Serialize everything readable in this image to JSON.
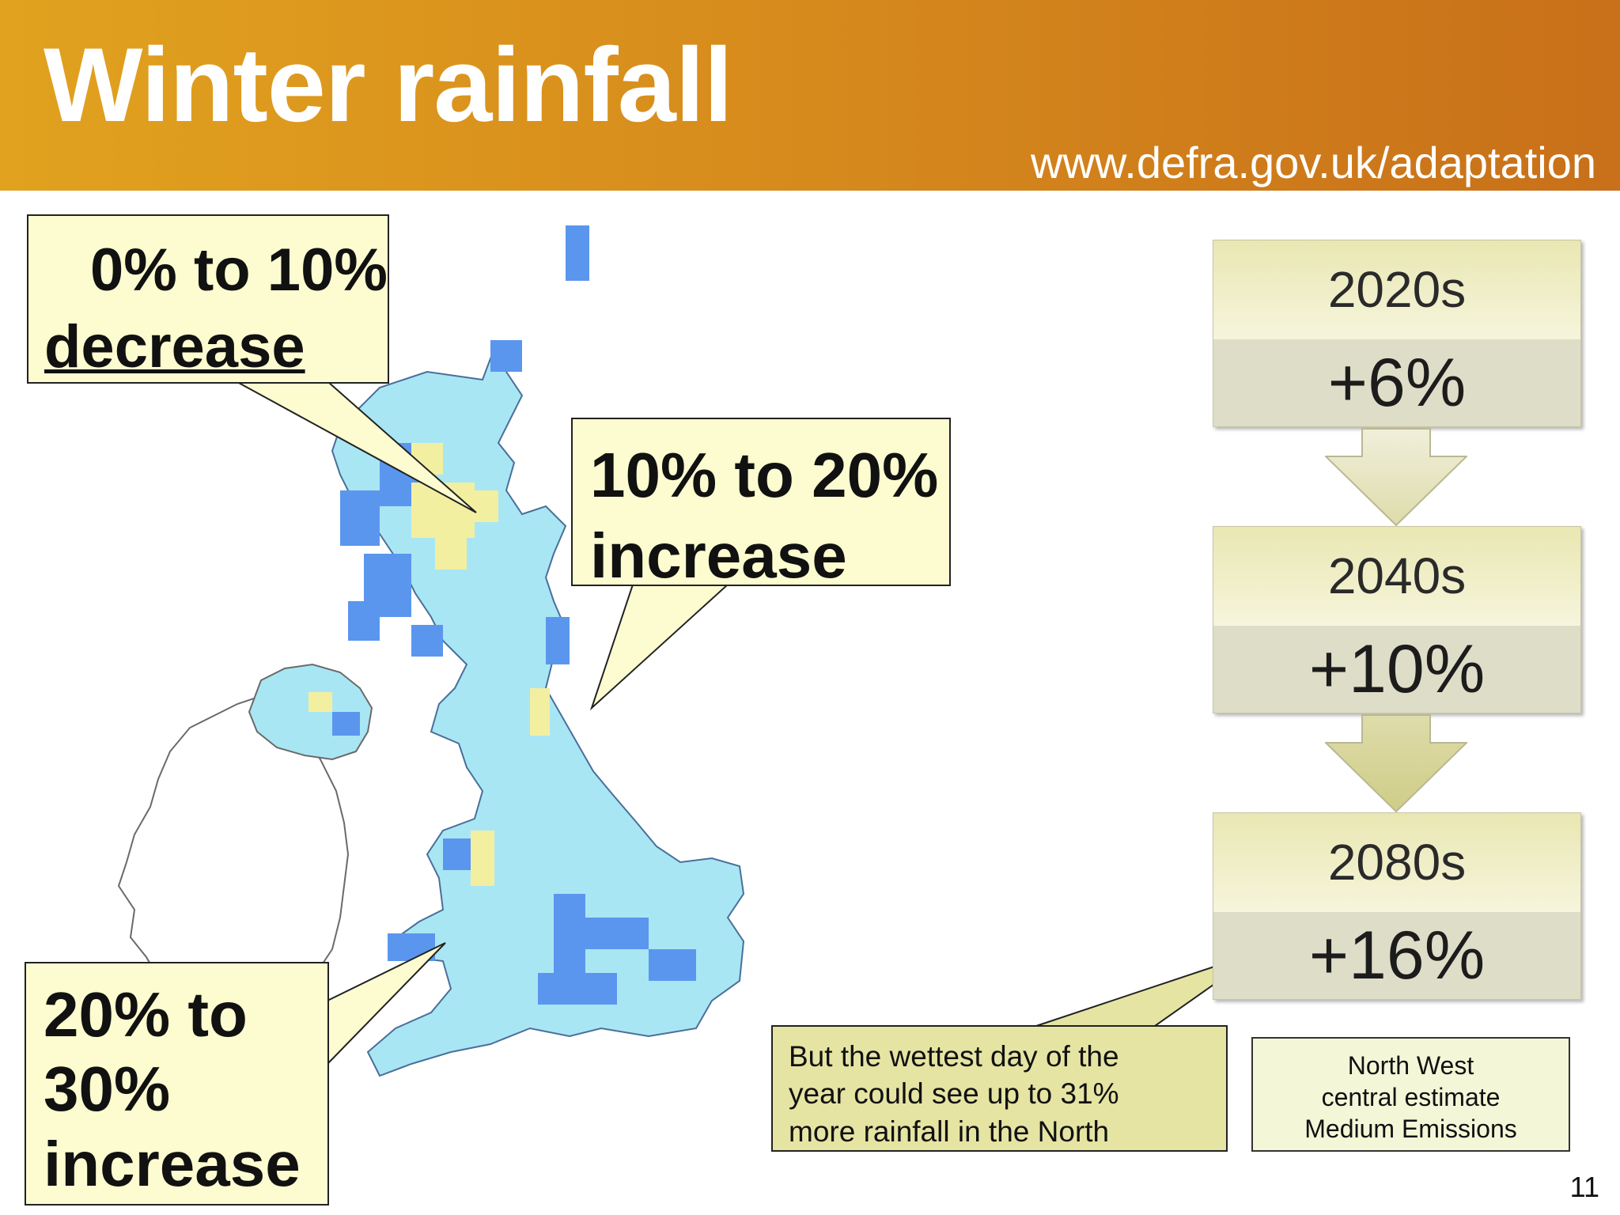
{
  "header": {
    "title": "Winter rainfall",
    "url": "www.defra.gov.uk/adaptation"
  },
  "callouts": {
    "decrease": {
      "line1": "0% to 10%",
      "line2": "decrease"
    },
    "increase_10_20": {
      "line1": "10% to 20%",
      "line2": "increase"
    },
    "increase_20_30": {
      "line1": "20% to",
      "line2": "30%",
      "line3": "increase"
    }
  },
  "projections": [
    {
      "period": "2020s",
      "change": "+6%"
    },
    {
      "period": "2040s",
      "change": "+10%"
    },
    {
      "period": "2080s",
      "change": "+16%"
    }
  ],
  "note": {
    "line1": "But the wettest day of the",
    "line2": "year could see up to 31%",
    "line3": "more rainfall in the North"
  },
  "legend": {
    "line1": "North West",
    "line2": "central estimate",
    "line3": "Medium Emissions"
  },
  "page_number": "11",
  "colors": {
    "header_start": "#e1a21f",
    "header_end": "#c8701a",
    "band_0_10_decrease": "#f3efa0",
    "band_10_20_increase": "#a9e6f4",
    "band_20_30_increase": "#5b96ee",
    "callout_fill": "#fdfcd0"
  }
}
